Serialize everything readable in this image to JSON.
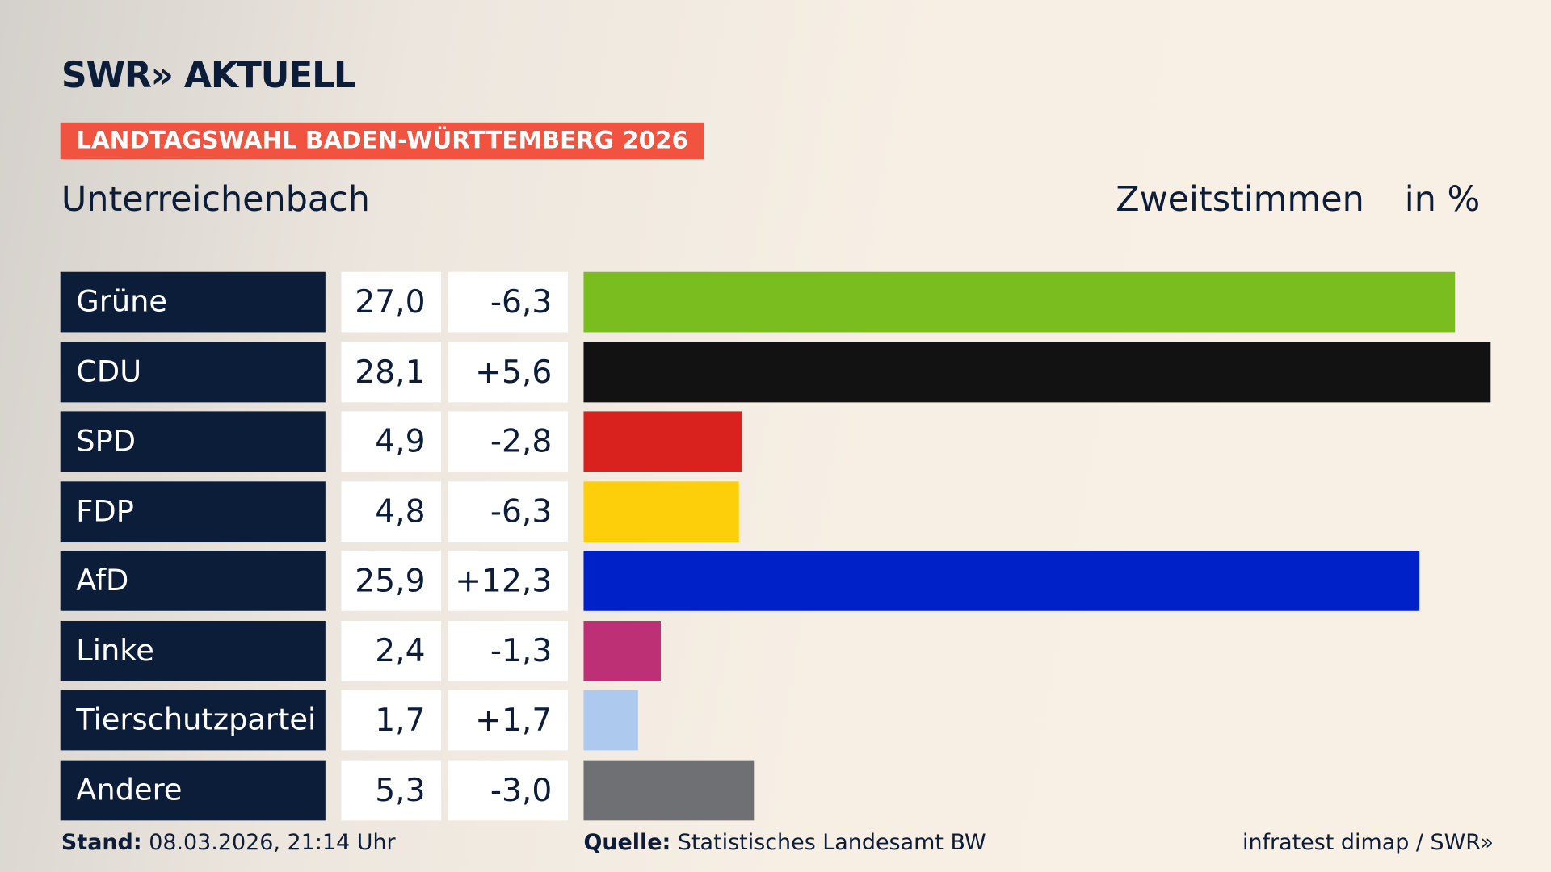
{
  "logo": "SWR» AKTUELL",
  "banner": "LANDTAGSWAHL BADEN-WÜRTTEMBERG 2026",
  "region": "Unterreichenbach",
  "metric": "Zweitstimmen",
  "unit": "in %",
  "chart_data": {
    "type": "bar",
    "orientation": "horizontal",
    "categories": [
      "Grüne",
      "CDU",
      "SPD",
      "FDP",
      "AfD",
      "Linke",
      "Tierschutzpartei",
      "Andere"
    ],
    "values": [
      27.0,
      28.1,
      4.9,
      4.8,
      25.9,
      2.4,
      1.7,
      5.3
    ],
    "value_labels": [
      "27,0",
      "28,1",
      "4,9",
      "4,8",
      "25,9",
      "2,4",
      "1,7",
      "5,3"
    ],
    "diff_labels": [
      "-6,3",
      "+5,6",
      "-2,8",
      "-6,3",
      "+12,3",
      "-1,3",
      "+1,7",
      "-3,0"
    ],
    "colors": [
      "#7abd1e",
      "#121212",
      "#d9211d",
      "#fdcf0b",
      "#0021c8",
      "#bd3075",
      "#aec9ee",
      "#6f7073"
    ],
    "xlim": [
      0,
      28.1
    ]
  },
  "footer": {
    "stand_label": "Stand:",
    "stand": "08.03.2026, 21:14 Uhr",
    "source_label": "Quelle:",
    "source": "Statistisches Landesamt BW",
    "credit": "infratest dimap / SWR»"
  }
}
